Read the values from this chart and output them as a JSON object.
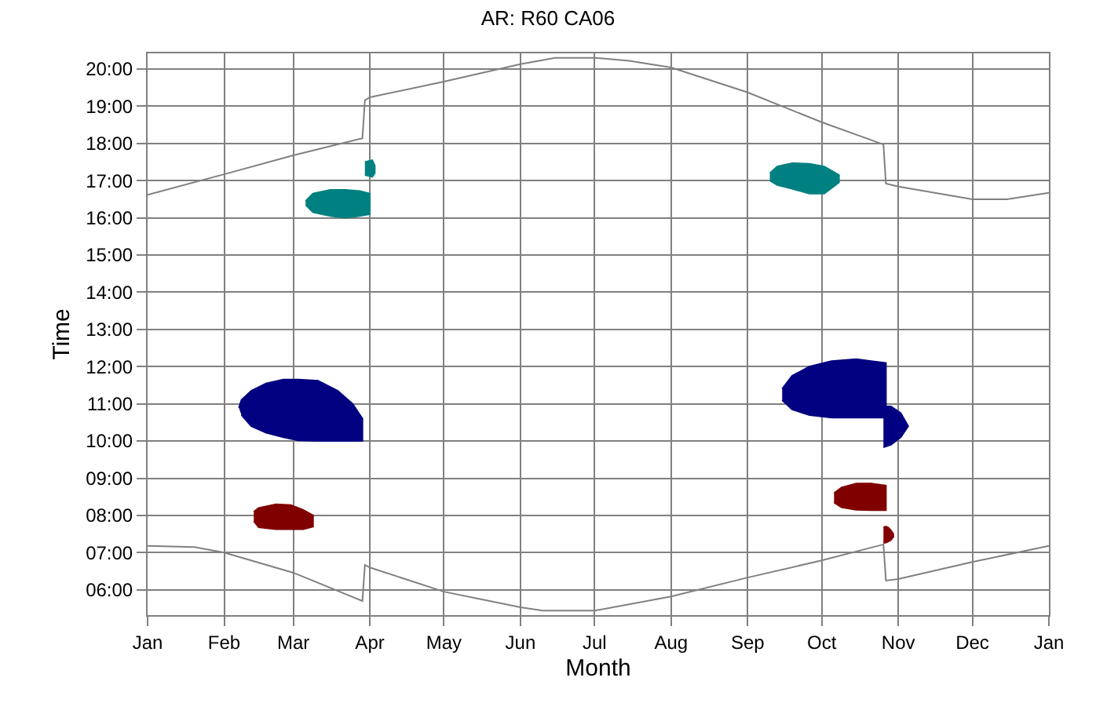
{
  "chart_data": {
    "type": "line",
    "title": "AR: R60 CA06",
    "xlabel": "Month",
    "ylabel": "Time",
    "grid": true,
    "marker": "none",
    "line_style": "solid",
    "xlim": [
      "--01-01",
      "2002-01-01"
    ],
    "xticks": [
      {
        "value": "--01-01",
        "label": "Jan"
      },
      {
        "value": "--02-01",
        "label": "Feb"
      },
      {
        "value": "--03-01",
        "label": "Mar"
      },
      {
        "value": "--04-01",
        "label": "Apr"
      },
      {
        "value": "--05-01",
        "label": "May"
      },
      {
        "value": "--06-01",
        "label": "Jun"
      },
      {
        "value": "--07-01",
        "label": "Jul"
      },
      {
        "value": "--08-01",
        "label": "Aug"
      },
      {
        "value": "--09-01",
        "label": "Sep"
      },
      {
        "value": "--10-01",
        "label": "Oct"
      },
      {
        "value": "--11-01",
        "label": "Nov"
      },
      {
        "value": "--12-01",
        "label": "Dec"
      },
      {
        "value": "2002-01-01",
        "label": "Jan"
      }
    ],
    "ylim": [
      5.32,
      20.42
    ],
    "yticks": [
      {
        "value": 6,
        "label": "06:00"
      },
      {
        "value": 7,
        "label": "07:00"
      },
      {
        "value": 8,
        "label": "08:00"
      },
      {
        "value": 9,
        "label": "09:00"
      },
      {
        "value": 10,
        "label": "10:00"
      },
      {
        "value": 11,
        "label": "11:00"
      },
      {
        "value": 12,
        "label": "12:00"
      },
      {
        "value": 13,
        "label": "13:00"
      },
      {
        "value": 14,
        "label": "14:00"
      },
      {
        "value": 15,
        "label": "15:00"
      },
      {
        "value": 16,
        "label": "16:00"
      },
      {
        "value": 17,
        "label": "17:00"
      },
      {
        "value": 18,
        "label": "18:00"
      },
      {
        "value": 19,
        "label": "19:00"
      },
      {
        "value": 20,
        "label": "20:00"
      }
    ],
    "series": [
      {
        "color": "#808080",
        "x": [
          "--01-01",
          "--02-01",
          "--03-01",
          "--03-29",
          "--03-30",
          "--04-01",
          "--05-01",
          "--06-01",
          "--06-15",
          "--07-01",
          "--07-15",
          "--08-01",
          "--09-01",
          "--10-01",
          "--10-26",
          "--10-27",
          "--11-01",
          "--12-01",
          "--12-15",
          "2002-01-01"
        ],
        "values": [
          16.62,
          17.17,
          17.68,
          18.14,
          19.16,
          19.24,
          19.66,
          20.13,
          20.3,
          20.3,
          20.22,
          20.04,
          19.37,
          18.57,
          17.97,
          16.92,
          16.84,
          16.5,
          16.5,
          16.67
        ]
      },
      {
        "color": "#808080",
        "x": [
          "--01-01",
          "--01-20",
          "--02-01",
          "--03-01",
          "--03-29",
          "--03-30",
          "--04-01",
          "--05-01",
          "--06-01",
          "--06-10",
          "--07-01",
          "--08-01",
          "--09-01",
          "--10-01",
          "--10-26",
          "--10-27",
          "--11-01",
          "--12-01",
          "2002-01-01"
        ],
        "values": [
          7.18,
          7.15,
          7.0,
          6.46,
          5.7,
          6.67,
          6.6,
          5.95,
          5.53,
          5.44,
          5.44,
          5.82,
          6.33,
          6.79,
          7.22,
          6.25,
          6.29,
          6.75,
          7.18
        ]
      },
      {
        "type": "area",
        "color": "#000080",
        "x": [
          "--02-07",
          "--02-08",
          "--02-12",
          "--02-18",
          "--02-25",
          "--03-03",
          "--03-11",
          "--03-19",
          "--03-25",
          "--03-29",
          "--03-29",
          "--03-25",
          "--03-19",
          "--03-11",
          "--03-03",
          "--02-25",
          "--02-18",
          "--02-12",
          "--02-08"
        ],
        "values": [
          10.89,
          11.1,
          11.35,
          11.55,
          11.65,
          11.65,
          11.62,
          11.35,
          11.0,
          10.6,
          10.0,
          10.0,
          10.0,
          10.0,
          10.02,
          10.1,
          10.22,
          10.4,
          10.7
        ]
      },
      {
        "type": "area",
        "color": "#800000",
        "x": [
          "--02-13",
          "--02-15",
          "--02-22",
          "--02-28",
          "--03-05",
          "--03-09",
          "--03-09",
          "--03-05",
          "--02-28",
          "--02-22",
          "--02-15",
          "--02-13"
        ],
        "values": [
          8.1,
          8.2,
          8.3,
          8.28,
          8.15,
          8.0,
          7.7,
          7.63,
          7.63,
          7.63,
          7.68,
          7.85
        ]
      },
      {
        "type": "area",
        "color": "#008080",
        "x": [
          "--03-06",
          "--03-09",
          "--03-16",
          "--03-22",
          "--03-28",
          "--04-01",
          "--04-01",
          "--03-28",
          "--03-22",
          "--03-16",
          "--03-09",
          "--03-06"
        ],
        "values": [
          16.45,
          16.65,
          16.75,
          16.75,
          16.72,
          16.65,
          16.1,
          16.05,
          16.0,
          16.05,
          16.15,
          16.35
        ]
      },
      {
        "type": "area",
        "color": "#008080",
        "x": [
          "--03-30",
          "--04-02",
          "--04-03",
          "--04-03",
          "--04-02",
          "--03-30"
        ],
        "values": [
          17.5,
          17.55,
          17.4,
          17.2,
          17.1,
          17.15
        ]
      },
      {
        "type": "area",
        "color": "#008080",
        "x": [
          "--09-10",
          "--09-13",
          "--09-19",
          "--09-26",
          "--10-02",
          "--10-08",
          "--10-08",
          "--10-02",
          "--09-26",
          "--09-19",
          "--09-13",
          "--09-10"
        ],
        "values": [
          17.2,
          17.38,
          17.47,
          17.45,
          17.38,
          17.15,
          16.95,
          16.65,
          16.65,
          16.78,
          16.88,
          17.0
        ]
      },
      {
        "type": "area",
        "color": "#000080",
        "x": [
          "--09-15",
          "--09-19",
          "--09-26",
          "--10-05",
          "--10-15",
          "--10-21",
          "--10-27",
          "--10-27",
          "--10-21",
          "--10-15",
          "--10-05",
          "--09-26",
          "--09-19",
          "--09-15"
        ],
        "values": [
          11.4,
          11.75,
          12.0,
          12.15,
          12.2,
          12.15,
          12.1,
          10.63,
          10.63,
          10.63,
          10.63,
          10.7,
          10.85,
          11.1
        ]
      },
      {
        "type": "area",
        "color": "#000080",
        "x": [
          "--10-26",
          "--10-29",
          "--11-02",
          "--11-05",
          "--11-02",
          "--10-29",
          "--10-26"
        ],
        "values": [
          10.93,
          10.93,
          10.75,
          10.4,
          10.1,
          9.9,
          9.83
        ]
      },
      {
        "type": "area",
        "color": "#800000",
        "x": [
          "--10-06",
          "--10-09",
          "--10-15",
          "--10-21",
          "--10-27",
          "--10-27",
          "--10-21",
          "--10-15",
          "--10-09",
          "--10-06",
          null,
          "--10-26",
          "--10-27",
          "--10-28",
          "--10-29",
          "--10-30",
          "--10-30",
          "--10-29",
          "--10-28",
          "--10-27",
          "--10-26"
        ],
        "values": [
          8.6,
          8.75,
          8.86,
          8.86,
          8.8,
          8.14,
          8.14,
          8.15,
          8.22,
          8.35,
          null,
          7.68,
          7.7,
          7.67,
          7.6,
          7.5,
          7.42,
          7.34,
          7.3,
          7.27,
          7.26
        ]
      }
    ]
  }
}
